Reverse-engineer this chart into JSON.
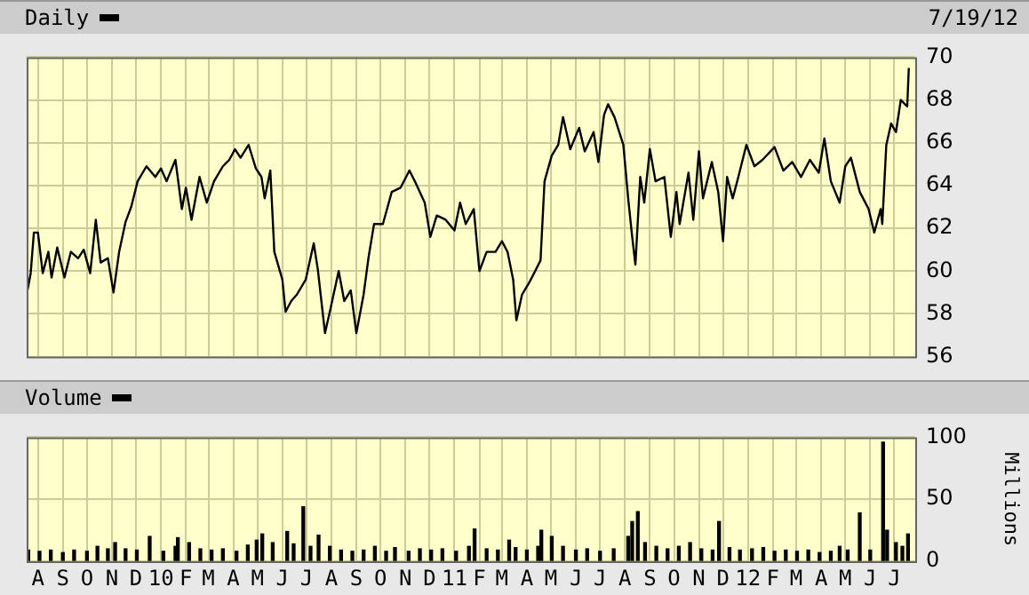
{
  "chart_data": [
    {
      "type": "line",
      "title": "Daily",
      "annotations": [
        "7/19/12"
      ],
      "color": "#000000",
      "grid": true,
      "tick_labels": "y",
      "xlim": [
        "2009-07-18",
        "2012-07-27"
      ],
      "xticks": [
        {
          "value": "2009-08-01",
          "label": null
        },
        {
          "value": "2009-09-01",
          "label": null
        },
        {
          "value": "2009-10-01",
          "label": null
        },
        {
          "value": "2009-11-01",
          "label": null
        },
        {
          "value": "2009-12-01",
          "label": null
        },
        {
          "value": "2010-01-01",
          "label": null
        },
        {
          "value": "2010-02-01",
          "label": null
        },
        {
          "value": "2010-03-01",
          "label": null
        },
        {
          "value": "2010-04-01",
          "label": null
        },
        {
          "value": "2010-05-01",
          "label": null
        },
        {
          "value": "2010-06-01",
          "label": null
        },
        {
          "value": "2010-07-01",
          "label": null
        },
        {
          "value": "2010-08-01",
          "label": null
        },
        {
          "value": "2010-09-01",
          "label": null
        },
        {
          "value": "2010-10-01",
          "label": null
        },
        {
          "value": "2010-11-01",
          "label": null
        },
        {
          "value": "2010-12-01",
          "label": null
        },
        {
          "value": "2011-01-01",
          "label": null
        },
        {
          "value": "2011-02-01",
          "label": null
        },
        {
          "value": "2011-03-01",
          "label": null
        },
        {
          "value": "2011-04-01",
          "label": null
        },
        {
          "value": "2011-05-01",
          "label": null
        },
        {
          "value": "2011-06-01",
          "label": null
        },
        {
          "value": "2011-07-01",
          "label": null
        },
        {
          "value": "2011-08-01",
          "label": null
        },
        {
          "value": "2011-09-01",
          "label": null
        },
        {
          "value": "2011-10-01",
          "label": null
        },
        {
          "value": "2011-11-01",
          "label": null
        },
        {
          "value": "2011-12-01",
          "label": null
        },
        {
          "value": "2012-01-01",
          "label": null
        },
        {
          "value": "2012-02-01",
          "label": null
        },
        {
          "value": "2012-03-01",
          "label": null
        },
        {
          "value": "2012-04-01",
          "label": null
        },
        {
          "value": "2012-05-01",
          "label": null
        },
        {
          "value": "2012-06-01",
          "label": null
        },
        {
          "value": "2012-07-01",
          "label": null
        }
      ],
      "ylim": [
        56,
        70
      ],
      "yticks": [
        56,
        58,
        60,
        62,
        64,
        66,
        68,
        70
      ],
      "x": [
        "2009-07-19",
        "2009-07-23",
        "2009-07-27",
        "2009-08-01",
        "2009-08-07",
        "2009-08-14",
        "2009-08-18",
        "2009-08-25",
        "2009-09-03",
        "2009-09-11",
        "2009-09-20",
        "2009-09-27",
        "2009-10-05",
        "2009-10-12",
        "2009-10-18",
        "2009-10-27",
        "2009-11-03",
        "2009-11-10",
        "2009-11-18",
        "2009-11-25",
        "2009-12-03",
        "2009-12-14",
        "2009-12-25",
        "2010-01-01",
        "2010-01-08",
        "2010-01-19",
        "2010-01-27",
        "2010-02-01",
        "2010-02-08",
        "2010-02-18",
        "2010-02-27",
        "2010-03-08",
        "2010-03-19",
        "2010-03-27",
        "2010-04-03",
        "2010-04-10",
        "2010-04-20",
        "2010-04-29",
        "2010-05-06",
        "2010-05-10",
        "2010-05-17",
        "2010-05-22",
        "2010-06-01",
        "2010-06-05",
        "2010-06-12",
        "2010-06-19",
        "2010-06-30",
        "2010-07-10",
        "2010-07-15",
        "2010-07-24",
        "2010-07-30",
        "2010-08-10",
        "2010-08-17",
        "2010-08-25",
        "2010-09-01",
        "2010-09-10",
        "2010-09-16",
        "2010-09-23",
        "2010-10-04",
        "2010-10-15",
        "2010-10-26",
        "2010-11-06",
        "2010-11-14",
        "2010-11-25",
        "2010-12-02",
        "2010-12-10",
        "2010-12-21",
        "2011-01-01",
        "2011-01-08",
        "2011-01-15",
        "2011-01-25",
        "2011-02-01",
        "2011-02-10",
        "2011-02-21",
        "2011-03-01",
        "2011-03-08",
        "2011-03-15",
        "2011-03-19",
        "2011-03-26",
        "2011-04-03",
        "2011-04-10",
        "2011-04-18",
        "2011-04-23",
        "2011-05-02",
        "2011-05-10",
        "2011-05-16",
        "2011-05-25",
        "2011-06-05",
        "2011-06-12",
        "2011-06-23",
        "2011-06-29",
        "2011-07-06",
        "2011-07-11",
        "2011-07-19",
        "2011-07-30",
        "2011-08-05",
        "2011-08-10",
        "2011-08-14",
        "2011-08-20",
        "2011-08-25",
        "2011-09-01",
        "2011-09-08",
        "2011-09-19",
        "2011-09-27",
        "2011-10-04",
        "2011-10-08",
        "2011-10-19",
        "2011-10-25",
        "2011-11-01",
        "2011-11-06",
        "2011-11-17",
        "2011-11-25",
        "2011-12-01",
        "2011-12-06",
        "2011-12-13",
        "2011-12-20",
        "2011-12-30",
        "2012-01-09",
        "2012-01-19",
        "2012-02-03",
        "2012-02-14",
        "2012-02-25",
        "2012-03-07",
        "2012-03-18",
        "2012-03-29",
        "2012-04-05",
        "2012-04-13",
        "2012-04-24",
        "2012-05-01",
        "2012-05-08",
        "2012-05-19",
        "2012-05-30",
        "2012-06-06",
        "2012-06-14",
        "2012-06-16",
        "2012-06-21",
        "2012-06-27",
        "2012-07-03",
        "2012-07-09",
        "2012-07-17",
        "2012-07-19"
      ],
      "values": [
        59.1,
        59.9,
        61.8,
        61.8,
        59.9,
        60.9,
        59.7,
        61.1,
        59.7,
        60.9,
        60.6,
        61.0,
        59.9,
        62.4,
        60.4,
        60.6,
        59.0,
        60.9,
        62.3,
        63.0,
        64.2,
        64.9,
        64.4,
        64.8,
        64.2,
        65.2,
        62.9,
        63.9,
        62.4,
        64.4,
        63.2,
        64.2,
        64.9,
        65.2,
        65.7,
        65.3,
        65.9,
        64.8,
        64.4,
        63.4,
        64.7,
        60.9,
        59.6,
        58.1,
        58.6,
        58.9,
        59.6,
        61.3,
        60.1,
        57.1,
        58.1,
        60.0,
        58.6,
        59.1,
        57.1,
        58.9,
        60.6,
        62.2,
        62.2,
        63.7,
        63.9,
        64.7,
        64.1,
        63.2,
        61.6,
        62.6,
        62.4,
        61.9,
        63.2,
        62.2,
        62.9,
        60.0,
        60.9,
        60.9,
        61.4,
        60.9,
        59.6,
        57.7,
        58.9,
        59.4,
        59.9,
        60.5,
        64.2,
        65.4,
        65.9,
        67.2,
        65.7,
        66.7,
        65.6,
        66.5,
        65.1,
        67.3,
        67.8,
        67.2,
        65.9,
        63.4,
        61.6,
        60.3,
        64.4,
        63.2,
        65.7,
        64.2,
        64.4,
        61.6,
        63.7,
        62.2,
        64.6,
        62.4,
        65.6,
        63.4,
        65.1,
        63.7,
        61.4,
        64.4,
        63.4,
        64.4,
        65.9,
        64.9,
        65.2,
        65.8,
        64.7,
        65.1,
        64.4,
        65.2,
        64.6,
        66.2,
        64.2,
        63.2,
        64.9,
        65.3,
        63.7,
        62.9,
        61.8,
        62.9,
        62.2,
        65.9,
        66.9,
        66.5,
        68.0,
        67.7,
        69.5
      ]
    },
    {
      "type": "bar",
      "title": "Volume",
      "ylabel": "Millions",
      "color": "#000000",
      "grid": true,
      "xlim": [
        "2009-07-18",
        "2012-07-27"
      ],
      "xticks": [
        {
          "value": "2009-08-01",
          "label": "A"
        },
        {
          "value": "2009-09-01",
          "label": "S"
        },
        {
          "value": "2009-10-01",
          "label": "O"
        },
        {
          "value": "2009-11-01",
          "label": "N"
        },
        {
          "value": "2009-12-01",
          "label": "D"
        },
        {
          "value": "2010-01-01",
          "label": "10"
        },
        {
          "value": "2010-02-01",
          "label": "F"
        },
        {
          "value": "2010-03-01",
          "label": "M"
        },
        {
          "value": "2010-04-01",
          "label": "A"
        },
        {
          "value": "2010-05-01",
          "label": "M"
        },
        {
          "value": "2010-06-01",
          "label": "J"
        },
        {
          "value": "2010-07-01",
          "label": "J"
        },
        {
          "value": "2010-08-01",
          "label": "A"
        },
        {
          "value": "2010-09-01",
          "label": "S"
        },
        {
          "value": "2010-10-01",
          "label": "O"
        },
        {
          "value": "2010-11-01",
          "label": "N"
        },
        {
          "value": "2010-12-01",
          "label": "D"
        },
        {
          "value": "2011-01-01",
          "label": "11"
        },
        {
          "value": "2011-02-01",
          "label": "F"
        },
        {
          "value": "2011-03-01",
          "label": "M"
        },
        {
          "value": "2011-04-01",
          "label": "A"
        },
        {
          "value": "2011-05-01",
          "label": "M"
        },
        {
          "value": "2011-06-01",
          "label": "J"
        },
        {
          "value": "2011-07-01",
          "label": "J"
        },
        {
          "value": "2011-08-01",
          "label": "A"
        },
        {
          "value": "2011-09-01",
          "label": "S"
        },
        {
          "value": "2011-10-01",
          "label": "O"
        },
        {
          "value": "2011-11-01",
          "label": "N"
        },
        {
          "value": "2011-12-01",
          "label": "D"
        },
        {
          "value": "2012-01-01",
          "label": "12"
        },
        {
          "value": "2012-02-01",
          "label": "F"
        },
        {
          "value": "2012-03-01",
          "label": "M"
        },
        {
          "value": "2012-04-01",
          "label": "A"
        },
        {
          "value": "2012-05-01",
          "label": "M"
        },
        {
          "value": "2012-06-01",
          "label": "J"
        },
        {
          "value": "2012-07-01",
          "label": "J"
        }
      ],
      "ylim": [
        0,
        100
      ],
      "yticks": [
        0,
        50,
        100
      ],
      "x": [
        "2009-07-20",
        "2009-08-03",
        "2009-08-17",
        "2009-09-01",
        "2009-09-15",
        "2009-10-01",
        "2009-10-14",
        "2009-10-27",
        "2009-11-05",
        "2009-11-18",
        "2009-12-02",
        "2009-12-18",
        "2010-01-04",
        "2010-01-19",
        "2010-01-22",
        "2010-02-05",
        "2010-02-19",
        "2010-03-05",
        "2010-03-19",
        "2010-04-05",
        "2010-04-19",
        "2010-04-30",
        "2010-05-07",
        "2010-05-20",
        "2010-06-07",
        "2010-06-15",
        "2010-06-27",
        "2010-07-06",
        "2010-07-16",
        "2010-07-30",
        "2010-08-13",
        "2010-08-27",
        "2010-09-10",
        "2010-09-24",
        "2010-10-08",
        "2010-10-19",
        "2010-11-05",
        "2010-11-19",
        "2010-12-03",
        "2010-12-17",
        "2011-01-03",
        "2011-01-19",
        "2011-01-26",
        "2011-02-10",
        "2011-02-24",
        "2011-03-10",
        "2011-03-18",
        "2011-04-01",
        "2011-04-15",
        "2011-04-19",
        "2011-05-02",
        "2011-05-16",
        "2011-06-01",
        "2011-06-15",
        "2011-07-01",
        "2011-07-18",
        "2011-08-05",
        "2011-08-10",
        "2011-08-17",
        "2011-08-26",
        "2011-09-09",
        "2011-09-23",
        "2011-10-07",
        "2011-10-21",
        "2011-11-04",
        "2011-11-18",
        "2011-11-26",
        "2011-12-09",
        "2011-12-22",
        "2012-01-06",
        "2012-01-20",
        "2012-02-03",
        "2012-02-17",
        "2012-03-02",
        "2012-03-16",
        "2012-03-30",
        "2012-04-13",
        "2012-04-24",
        "2012-05-04",
        "2012-05-19",
        "2012-06-01",
        "2012-06-17",
        "2012-06-22",
        "2012-07-03",
        "2012-07-11",
        "2012-07-18"
      ],
      "values": [
        9,
        8,
        9,
        7,
        9,
        8,
        12,
        10,
        15,
        10,
        9,
        20,
        8,
        12,
        19,
        15,
        10,
        9,
        10,
        8,
        13,
        17,
        22,
        15,
        24,
        14,
        44,
        12,
        21,
        12,
        9,
        8,
        9,
        12,
        8,
        11,
        8,
        10,
        9,
        10,
        8,
        12,
        26,
        10,
        9,
        17,
        11,
        9,
        12,
        25,
        20,
        12,
        9,
        10,
        8,
        10,
        20,
        32,
        40,
        15,
        12,
        10,
        12,
        15,
        10,
        9,
        32,
        11,
        9,
        10,
        11,
        8,
        9,
        8,
        9,
        7,
        8,
        12,
        9,
        39,
        9,
        96,
        25,
        15,
        12,
        22
      ]
    }
  ]
}
